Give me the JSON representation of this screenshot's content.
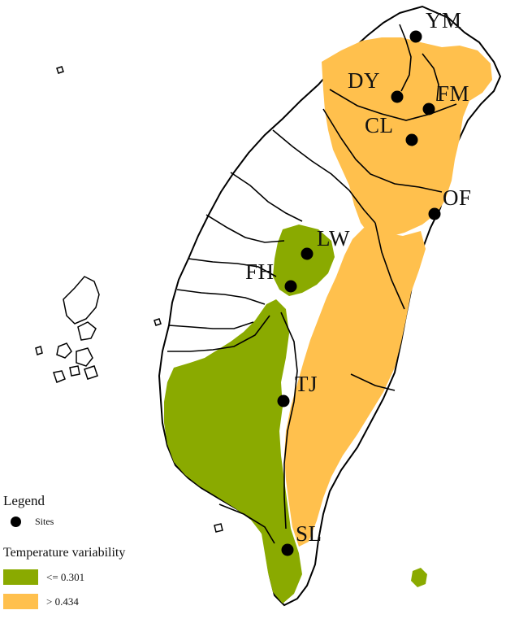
{
  "map": {
    "sites": [
      {
        "code": "YM"
      },
      {
        "code": "DY"
      },
      {
        "code": "FM"
      },
      {
        "code": "CL"
      },
      {
        "code": "OF"
      },
      {
        "code": "LW"
      },
      {
        "code": "FH"
      },
      {
        "code": "TJ"
      },
      {
        "code": "SL"
      }
    ],
    "colors": {
      "low": "#8aaa00",
      "high": "#ffc04d",
      "boundary": "#000000"
    }
  },
  "legend": {
    "title": "Legend",
    "sites_label": "Sites",
    "variable_title": "Temperature variability",
    "classes": [
      {
        "label": "<= 0.301",
        "color": "#8aaa00"
      },
      {
        "label": "> 0.434",
        "color": "#ffc04d"
      }
    ]
  }
}
